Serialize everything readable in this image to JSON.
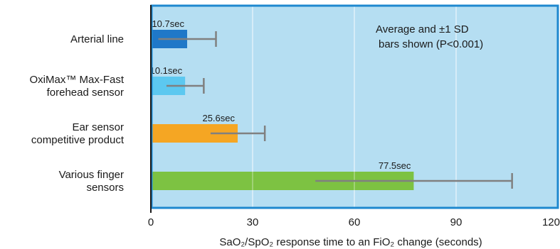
{
  "chart_data": {
    "type": "bar",
    "orientation": "horizontal",
    "categories": [
      [
        "Arterial line"
      ],
      [
        "OxiMax™ Max-Fast",
        "forehead sensor"
      ],
      [
        "Ear sensor",
        "competitive product"
      ],
      [
        "Various finger",
        "sensors"
      ]
    ],
    "values": [
      10.7,
      10.1,
      25.6,
      77.5
    ],
    "sd": [
      8.5,
      5.5,
      8.0,
      29.0
    ],
    "data_labels": [
      "10.7sec",
      "10.1sec",
      "25.6sec",
      "77.5sec"
    ],
    "bar_colors": [
      "#1f78c8",
      "#5cc8f0",
      "#f5a623",
      "#7dc242"
    ],
    "xlim": [
      0,
      120
    ],
    "xticks": [
      0,
      30,
      60,
      90,
      120
    ],
    "xlabel": "SaO₂/SpO₂ response time to an FiO₂ change (seconds)",
    "annotation": [
      "Average and ±1 SD",
      "bars shown (P<0.001)"
    ],
    "grid": true,
    "background_color": "#b5def2",
    "frame_color": "#1e88cf",
    "error_bar_color": "#808080"
  }
}
